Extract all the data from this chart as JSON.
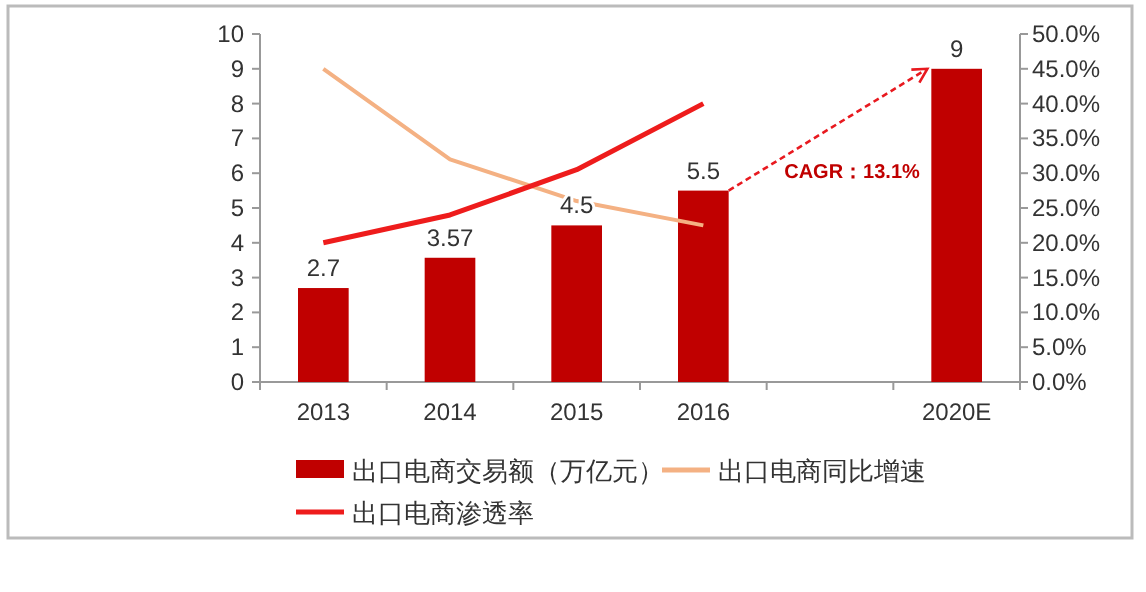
{
  "chart_data": {
    "type": "bar",
    "categories": [
      "2013",
      "2014",
      "2015",
      "2016",
      null,
      "2020E"
    ],
    "series": [
      {
        "name": "出口电商交易额（万亿元）",
        "color": "#c00000",
        "values": [
          2.7,
          3.57,
          4.5,
          5.5,
          null,
          9
        ],
        "value_labels": [
          "2.7",
          "3.57",
          "4.5",
          "5.5",
          null,
          "9"
        ]
      },
      {
        "name": "出口电商同比增速",
        "type": "line",
        "axis": "y2",
        "color": "#f4b183",
        "values": [
          45,
          32,
          26,
          22.5,
          null,
          null
        ]
      },
      {
        "name": "出口电商渗透率",
        "type": "line",
        "axis": "y2",
        "color": "#ee1c1c",
        "values": [
          20,
          24,
          30.5,
          40,
          null,
          null
        ]
      }
    ],
    "ylim": [
      0,
      10
    ],
    "yticks": [
      0,
      1,
      2,
      3,
      4,
      5,
      6,
      7,
      8,
      9,
      10
    ],
    "y2lim": [
      0,
      50
    ],
    "y2ticks": [
      {
        "value": 0,
        "label": "0.0%"
      },
      {
        "value": 5,
        "label": "5.0%"
      },
      {
        "value": 10,
        "label": "10.0%"
      },
      {
        "value": 15,
        "label": "15.0%"
      },
      {
        "value": 20,
        "label": "20.0%"
      },
      {
        "value": 25,
        "label": "25.0%"
      },
      {
        "value": 30,
        "label": "30.0%"
      },
      {
        "value": 35,
        "label": "35.0%"
      },
      {
        "value": 40,
        "label": "40.0%"
      },
      {
        "value": 45,
        "label": "45.0%"
      },
      {
        "value": 50,
        "label": "50.0%"
      }
    ],
    "annotations": [
      "CAGR：13.1%"
    ],
    "legend": "bottom",
    "grid": false,
    "marker": "none",
    "line_style": "solid"
  }
}
